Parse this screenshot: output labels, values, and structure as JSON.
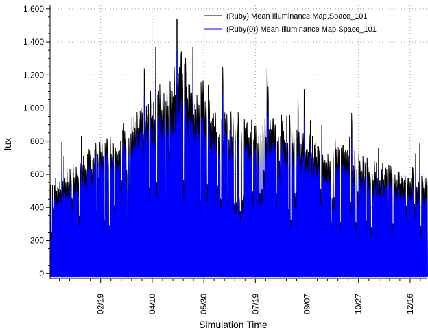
{
  "chart_data": {
    "type": "line",
    "xlabel": "Simulation Time",
    "ylabel": "lux",
    "ylim": [
      -30,
      1620
    ],
    "yticks": [
      0,
      200,
      400,
      600,
      800,
      1000,
      1200,
      1400,
      1600
    ],
    "ytick_labels": [
      "0",
      "200",
      "400",
      "600",
      "800",
      "1,000",
      "1,200",
      "1,400",
      "1,600"
    ],
    "x_unit": "day of year",
    "xlim": [
      1,
      366
    ],
    "xticks": [
      {
        "label": "02/19",
        "day": 50
      },
      {
        "label": "04/10",
        "day": 100
      },
      {
        "label": "05/30",
        "day": 150
      },
      {
        "label": "07/19",
        "day": 200
      },
      {
        "label": "09/07",
        "day": 250
      },
      {
        "label": "10/27",
        "day": 300
      },
      {
        "label": "12/16",
        "day": 350
      }
    ],
    "grid": true,
    "legend_position": "top-right",
    "series": [
      {
        "name": "(Ruby) Mean Illuminance Map,Space_101",
        "color": "#000000",
        "daily_peaks": {
          "day": [
            1,
            15,
            30,
            45,
            60,
            75,
            90,
            100,
            110,
            120,
            130,
            140,
            150,
            160,
            170,
            180,
            190,
            200,
            210,
            220,
            230,
            240,
            250,
            260,
            270,
            280,
            290,
            300,
            310,
            320,
            335,
            350,
            365
          ],
          "values": [
            560,
            600,
            680,
            760,
            820,
            890,
            960,
            1080,
            1120,
            1250,
            1300,
            1050,
            1150,
            1000,
            930,
            950,
            920,
            900,
            950,
            920,
            930,
            880,
            820,
            770,
            760,
            800,
            720,
            720,
            670,
            650,
            620,
            620,
            600
          ]
        },
        "max": 1540
      },
      {
        "name": "(Ruby(0)) Mean Illuminance Map,Space_101",
        "color": "#0000ff",
        "daily_peaks": {
          "day": [
            1,
            15,
            30,
            45,
            60,
            75,
            90,
            100,
            110,
            120,
            130,
            140,
            150,
            160,
            170,
            180,
            190,
            200,
            210,
            220,
            230,
            240,
            250,
            260,
            270,
            280,
            290,
            300,
            310,
            320,
            335,
            350,
            365
          ],
          "values": [
            470,
            510,
            560,
            680,
            730,
            780,
            840,
            900,
            950,
            1000,
            1020,
            900,
            920,
            850,
            820,
            800,
            780,
            760,
            800,
            780,
            790,
            730,
            700,
            640,
            630,
            680,
            610,
            600,
            560,
            540,
            520,
            510,
            480
          ]
        },
        "max": 1340
      }
    ]
  }
}
